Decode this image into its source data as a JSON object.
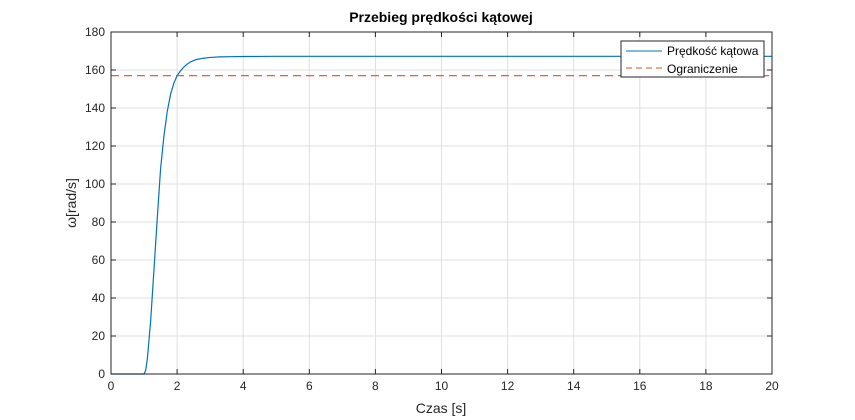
{
  "chart_data": {
    "type": "line",
    "title": "Przebieg prędkości kątowej",
    "xlabel": "Czas [s]",
    "ylabel": "ω[rad/s]",
    "xlim": [
      0,
      20
    ],
    "ylim": [
      0,
      180
    ],
    "xticks": [
      0,
      2,
      4,
      6,
      8,
      10,
      12,
      14,
      16,
      18,
      20
    ],
    "yticks": [
      0,
      20,
      40,
      60,
      80,
      100,
      120,
      140,
      160,
      180
    ],
    "grid": true,
    "legend_position": "top-right",
    "series": [
      {
        "name": "Prędkość kątowa",
        "style": "solid",
        "color": "#0072BD",
        "x": [
          0,
          1.0,
          1.05,
          1.1,
          1.2,
          1.3,
          1.4,
          1.5,
          1.6,
          1.7,
          1.8,
          1.9,
          2.0,
          2.1,
          2.2,
          2.3,
          2.4,
          2.5,
          2.6,
          2.8,
          3.0,
          3.3,
          3.6,
          4.0,
          5.0,
          6.0,
          8.0,
          10.0,
          12.0,
          14.0,
          16.0,
          18.0,
          20.0
        ],
        "y": [
          0,
          0,
          2,
          8,
          28,
          55,
          82,
          108,
          125,
          138,
          147,
          153,
          157,
          159.5,
          161.5,
          163,
          164.2,
          165,
          165.6,
          166.2,
          166.6,
          166.9,
          167,
          167.1,
          167.2,
          167.2,
          167.2,
          167.2,
          167.2,
          167.2,
          167.2,
          167.2,
          167.2
        ]
      },
      {
        "name": "Ograniczenie",
        "style": "dashed",
        "color": "#D95319",
        "x": [
          0,
          20
        ],
        "y": [
          157,
          157
        ]
      }
    ]
  }
}
